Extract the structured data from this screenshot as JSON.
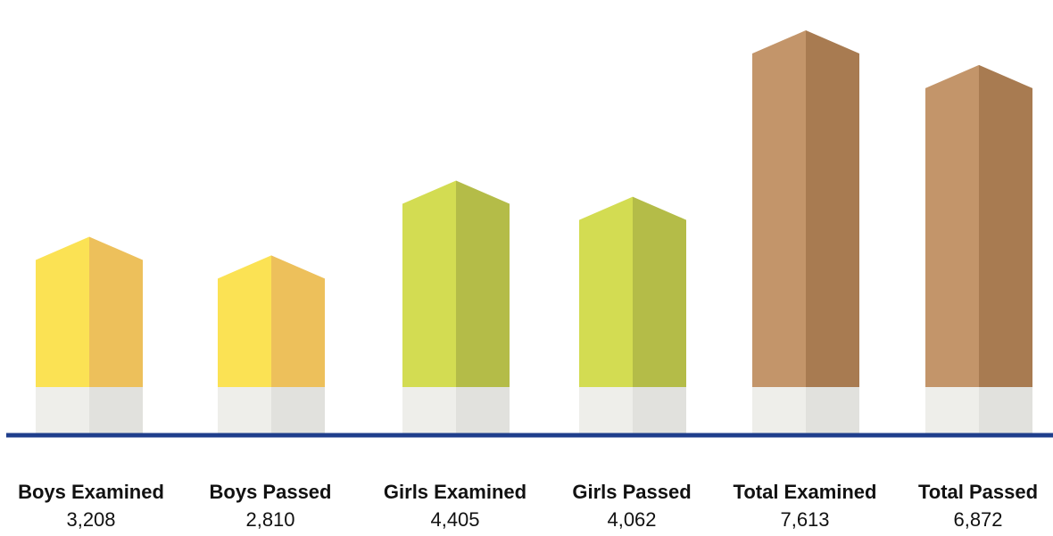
{
  "chart_data": {
    "type": "bar",
    "categories": [
      "Boys Examined",
      "Boys Passed",
      "Girls Examined",
      "Girls Passed",
      "Total Examined",
      "Total Passed"
    ],
    "values": [
      3208,
      2810,
      4405,
      4062,
      7613,
      6872
    ],
    "value_labels": [
      "3,208",
      "2,810",
      "4,405",
      "4,062",
      "7,613",
      "6,872"
    ],
    "title": "",
    "xlabel": "",
    "ylabel": "",
    "grid": false,
    "legend": "none"
  },
  "colors": {
    "boys_light": "#fbe254",
    "boys_dark": "#edc05b",
    "girls_light": "#d3dc52",
    "girls_dark": "#b4bc48",
    "total_light": "#c3956a",
    "total_dark": "#a87b51",
    "base_light": "#eeeeea",
    "base_dark": "#e1e1dd",
    "axis_line": "#1f3e8c"
  }
}
